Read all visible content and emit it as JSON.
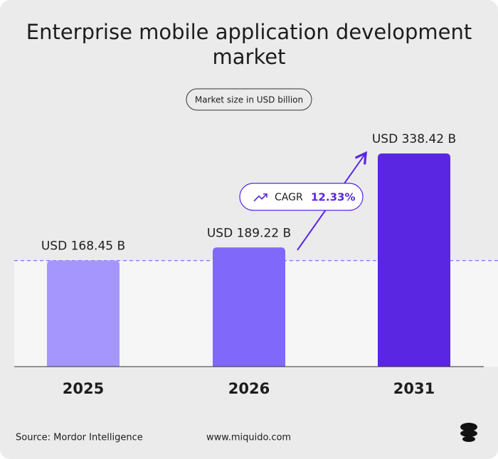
{
  "chart_data": {
    "type": "bar",
    "title": [
      "Enterprise mobile application development",
      "market"
    ],
    "subtitle": "Market size in USD billion",
    "categories": [
      "2025",
      "2026",
      "2031"
    ],
    "values": [
      168.45,
      189.22,
      338.42
    ],
    "value_labels": [
      "USD 168.45 B",
      "USD 189.22 B",
      "USD 338.42 B"
    ],
    "colors": [
      "#a496fd",
      "#8068fb",
      "#5a26e2"
    ],
    "annotation": {
      "label": "CAGR",
      "value": "12.33%"
    },
    "source": "Source: Mordor Intelligence",
    "website": "www.miquido.com"
  }
}
